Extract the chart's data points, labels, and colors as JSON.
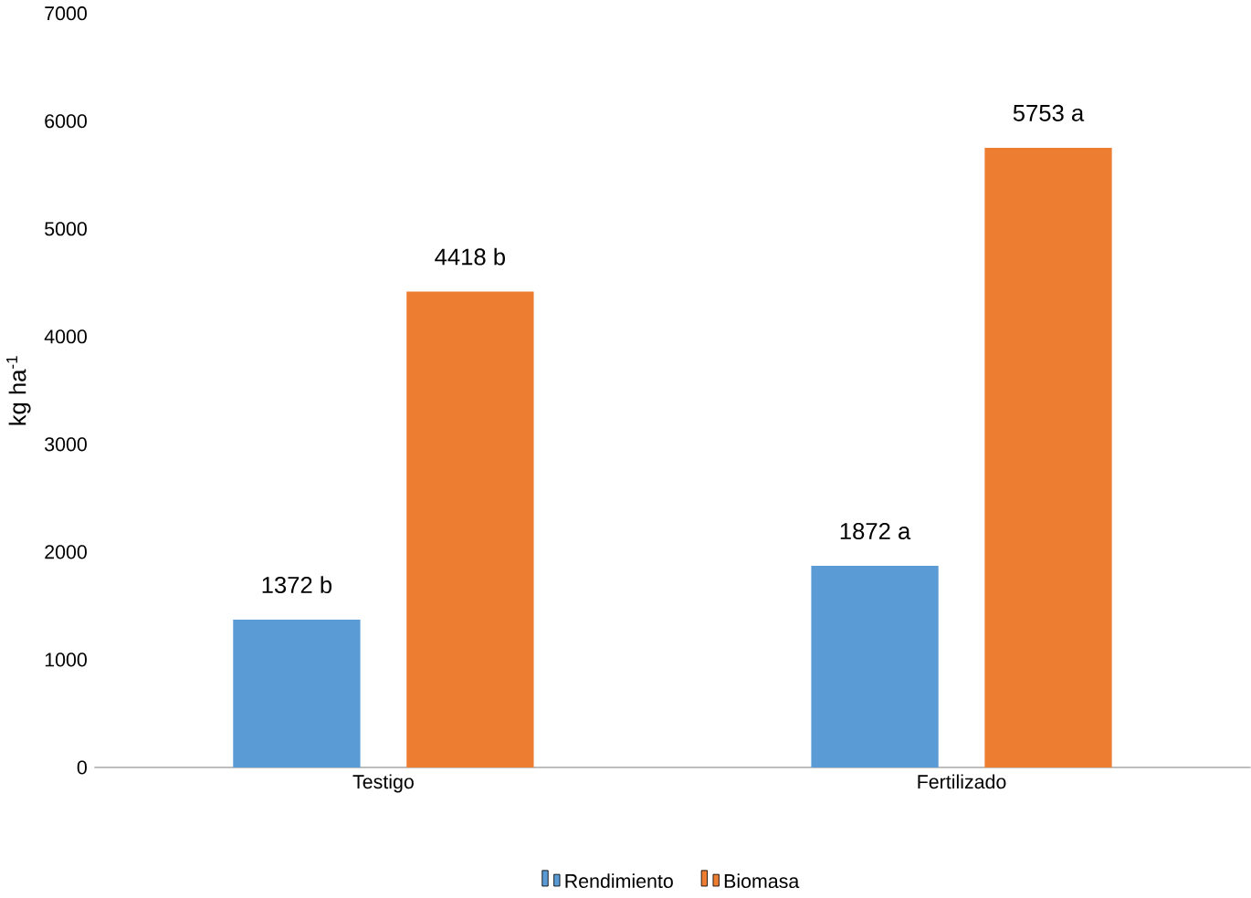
{
  "chart_data": {
    "type": "bar",
    "ylabel": "kg ha$^{-1}$",
    "categories": [
      "Testigo",
      "Fertilizado"
    ],
    "series": [
      {
        "name": "Rendimiento",
        "color": "#5b9bd5",
        "values": [
          1372,
          1872
        ],
        "value_labels": [
          "1372 b",
          "1872 a"
        ]
      },
      {
        "name": "Biomasa",
        "color": "#ed7d31",
        "values": [
          4418,
          5753
        ],
        "value_labels": [
          "4418 b",
          "5753 a"
        ]
      }
    ],
    "ylim": [
      0,
      7000
    ],
    "yticks": [
      0,
      1000,
      2000,
      3000,
      4000,
      5000,
      6000,
      7000
    ],
    "grid": false,
    "legend": "bottom"
  }
}
